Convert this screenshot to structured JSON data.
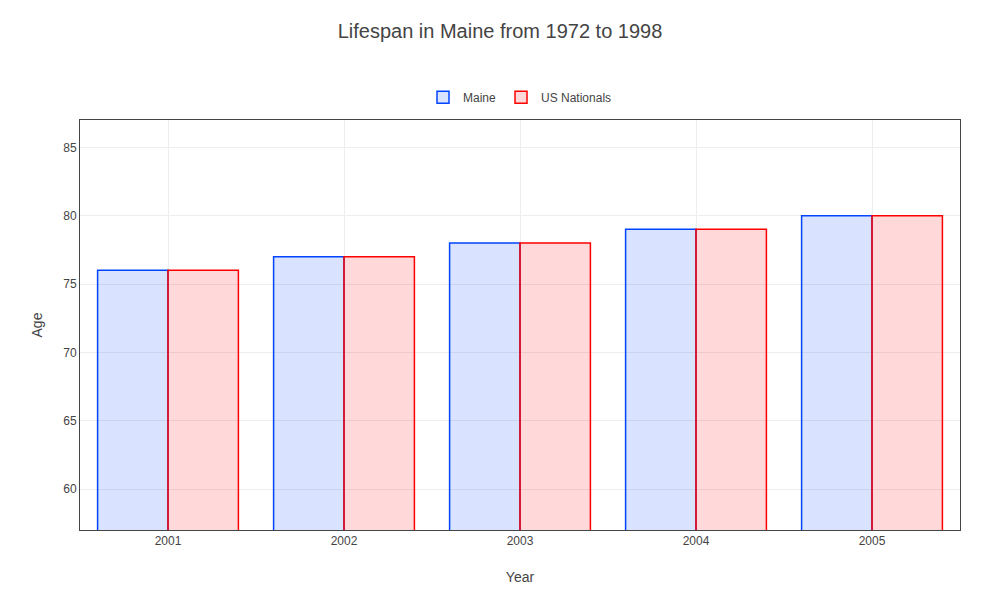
{
  "chart_data": {
    "type": "bar",
    "title": "Lifespan in Maine from 1972 to 1998",
    "xlabel": "Year",
    "ylabel": "Age",
    "categories": [
      "2001",
      "2002",
      "2003",
      "2004",
      "2005"
    ],
    "series": [
      {
        "name": "Maine",
        "color": "#0044ff",
        "values": [
          76,
          77,
          78,
          79,
          80
        ]
      },
      {
        "name": "US Nationals",
        "color": "#ff0000",
        "values": [
          76,
          77,
          78,
          79,
          80
        ]
      }
    ],
    "ylim": [
      57,
      87
    ],
    "yticks": [
      60,
      65,
      70,
      75,
      80,
      85
    ],
    "grid": true,
    "legend": "top"
  }
}
